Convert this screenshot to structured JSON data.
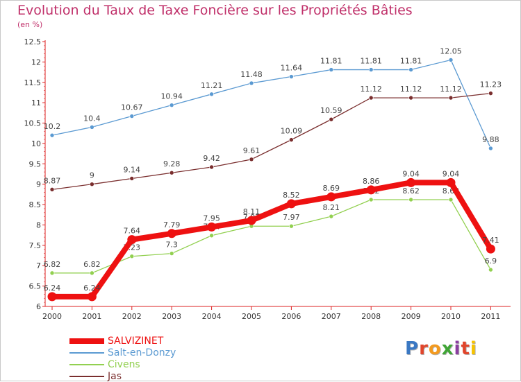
{
  "header": {
    "title": "Evolution du Taux de Taxe Foncière sur les Propriétés Bâties",
    "subtitle": "(en %)"
  },
  "logo": {
    "text": "Proxiti",
    "colors": [
      "#3a78c3",
      "#e1452b",
      "#f39a1f",
      "#3fa535",
      "#8a3ea0",
      "#e1452b",
      "#f6c300"
    ]
  },
  "chart_data": {
    "type": "line",
    "title": "Evolution du Taux de Taxe Foncière sur les Propriétés Bâties",
    "ylabel": "(en %)",
    "xlabel": "",
    "x": [
      "2000",
      "2001",
      "2002",
      "2003",
      "2004",
      "2005",
      "2006",
      "2007",
      "2008",
      "2009",
      "2010",
      "2011"
    ],
    "ylim": [
      6,
      12.5
    ],
    "yticks": [
      "6",
      "6.5",
      "7",
      "7.5",
      "8",
      "8.5",
      "9",
      "9.5",
      "10",
      "10.5",
      "11",
      "11.5",
      "12",
      "12.5"
    ],
    "grid": false,
    "legend_position": "bottom-left",
    "series": [
      {
        "name": "Salt-en-Donzy",
        "color": "#5b9ad2",
        "weight": "thin",
        "values": [
          10.2,
          10.4,
          10.67,
          10.94,
          11.21,
          11.48,
          11.64,
          11.81,
          11.81,
          11.81,
          12.05,
          9.88
        ],
        "labels": [
          "10.2",
          "10.4",
          "10.67",
          "10.94",
          "11.21",
          "11.48",
          "11.64",
          "11.81",
          "11.81",
          "11.81",
          "12.05",
          "9.88"
        ]
      },
      {
        "name": "Jas",
        "color": "#7a2e2e",
        "weight": "thin",
        "values": [
          8.87,
          9,
          9.14,
          9.28,
          9.42,
          9.61,
          10.09,
          10.59,
          11.12,
          11.12,
          11.12,
          11.23
        ],
        "labels": [
          "8.87",
          "9",
          "9.14",
          "9.28",
          "9.42",
          "9.61",
          "10.09",
          "10.59",
          "11.12",
          "11.12",
          "11.12",
          "11.23"
        ]
      },
      {
        "name": "Civens",
        "color": "#92d050",
        "weight": "thin",
        "values": [
          6.82,
          6.82,
          7.23,
          7.3,
          7.74,
          7.97,
          7.97,
          8.21,
          8.62,
          8.62,
          8.62,
          6.9
        ],
        "labels": [
          "6.82",
          "6.82",
          "7.23",
          "7.3",
          "7.74",
          "7.97",
          "7.97",
          "8.21",
          "8.62",
          "8.62",
          "8.62",
          "6.9"
        ]
      },
      {
        "name": "SALVIZINET",
        "color": "#ee1111",
        "weight": "thick",
        "values": [
          6.24,
          6.24,
          7.64,
          7.79,
          7.95,
          8.11,
          8.52,
          8.69,
          8.86,
          9.04,
          9.04,
          7.41
        ],
        "labels": [
          "6.24",
          "6.24",
          "7.64",
          "7.79",
          "7.95",
          "8.11",
          "8.52",
          "8.69",
          "8.86",
          "9.04",
          "9.04",
          "7.41"
        ]
      }
    ]
  },
  "legend": {
    "items": [
      {
        "label": "SALVIZINET",
        "color": "#ee1111",
        "weight": "thick"
      },
      {
        "label": "Salt-en-Donzy",
        "color": "#5b9ad2",
        "weight": "thin"
      },
      {
        "label": "Civens",
        "color": "#92d050",
        "weight": "thin"
      },
      {
        "label": "Jas",
        "color": "#7a2e2e",
        "weight": "thin"
      }
    ]
  }
}
